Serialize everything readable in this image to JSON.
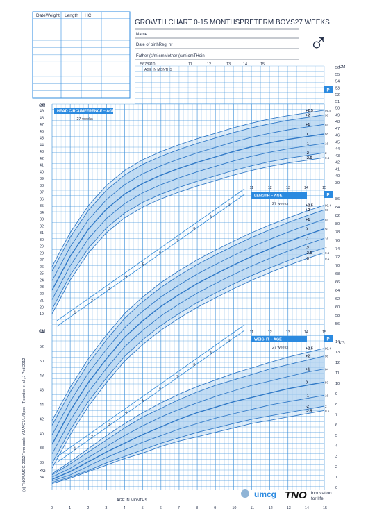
{
  "header": {
    "title": "GROWTH CHART 0-15 MONTHSPRETERM BOYS27 WEEKS",
    "form_fields": [
      "Name",
      "Date of birthReg. nr",
      "Father (s/m)cmMother (s/m)cmTHoin"
    ],
    "symbol": "♂",
    "copyright": "(c) TNO/UMCG 2012Form code: YJAA/27/Ll/Upss  –Tjeerdes et al., J Ped 2012"
  },
  "measurement_table": {
    "columns": [
      "DateWeight",
      "Length",
      "HC"
    ],
    "rows": 11
  },
  "top_axis": {
    "label": "AGE IN MONTHS",
    "ticks": [
      "5678910",
      "11",
      "12",
      "13",
      "14",
      "15"
    ]
  },
  "bottom_axis": {
    "label": "AGE IN MONTHS",
    "ticks": [
      "0",
      "1",
      "2",
      "3",
      "4",
      "5",
      "6",
      "7",
      "8",
      "9",
      "10",
      "11",
      "12",
      "13",
      "14",
      "15"
    ]
  },
  "units": {
    "cm": "CM",
    "kg": "KG",
    "p": "P"
  },
  "logos": {
    "umcg": "umcg",
    "tno": "TNO",
    "tno_tagline_1": "innovation",
    "tno_tagline_2": "for life"
  },
  "colors": {
    "band": "#a9cdef",
    "grid": "#3a8fd9",
    "line": "#2f78c6",
    "header": "#2b8ae0",
    "text": "#1f2a44"
  },
  "chart_data": [
    {
      "type": "line",
      "title": "HEAD CIRCUMFERENCE – AGE",
      "subtitle": "27 weeks",
      "x": [
        0,
        1,
        2,
        3,
        4,
        5,
        6,
        7,
        8,
        9,
        10,
        11,
        12,
        13,
        14,
        15
      ],
      "xlabel": "AGE IN MONTHS",
      "ylabel": "CM",
      "xlim": [
        0,
        15
      ],
      "ylim": [
        19,
        50
      ],
      "series": [
        {
          "name": "+2.5",
          "values": [
            26.0,
            31.0,
            35.0,
            38.0,
            40.2,
            41.8,
            43.0,
            44.0,
            44.9,
            45.7,
            46.5,
            47.2,
            47.8,
            48.3,
            48.7,
            49.1
          ]
        },
        {
          "name": "+2",
          "values": [
            25.3,
            30.3,
            34.3,
            37.3,
            39.5,
            41.1,
            42.3,
            43.3,
            44.2,
            45.0,
            45.8,
            46.5,
            47.1,
            47.6,
            48.0,
            48.4
          ]
        },
        {
          "name": "+1",
          "values": [
            23.9,
            28.9,
            32.9,
            35.9,
            38.1,
            39.7,
            40.9,
            41.9,
            42.8,
            43.6,
            44.4,
            45.1,
            45.7,
            46.2,
            46.6,
            47.0
          ]
        },
        {
          "name": "0",
          "values": [
            22.5,
            27.5,
            31.5,
            34.5,
            36.7,
            38.3,
            39.5,
            40.5,
            41.4,
            42.2,
            43.0,
            43.7,
            44.3,
            44.8,
            45.2,
            45.6
          ]
        },
        {
          "name": "-1",
          "values": [
            21.1,
            26.1,
            30.1,
            33.1,
            35.3,
            36.9,
            38.1,
            39.1,
            40.0,
            40.8,
            41.6,
            42.3,
            42.9,
            43.4,
            43.8,
            44.2
          ]
        },
        {
          "name": "-2",
          "values": [
            19.7,
            24.7,
            28.7,
            31.7,
            33.9,
            35.5,
            36.7,
            37.7,
            38.6,
            39.4,
            40.2,
            40.9,
            41.5,
            42.0,
            42.4,
            42.8
          ]
        },
        {
          "name": "-2.5",
          "values": [
            19.0,
            24.0,
            28.0,
            31.0,
            33.2,
            34.8,
            36.0,
            37.0,
            37.9,
            38.7,
            39.5,
            40.2,
            40.8,
            41.3,
            41.7,
            42.1
          ]
        }
      ],
      "percentiles": [
        "99.4",
        "98",
        "84",
        "50",
        "16",
        "2",
        "0.6"
      ]
    },
    {
      "type": "line",
      "title": "LENGTH – AGE",
      "subtitle": "27 weeks",
      "x": [
        0,
        1,
        2,
        3,
        4,
        5,
        6,
        7,
        8,
        9,
        10,
        11,
        12,
        13,
        14,
        15
      ],
      "xlabel": "AGE IN MONTHS",
      "ylabel": "CM",
      "xlim": [
        0,
        15
      ],
      "ylim": [
        34,
        88
      ],
      "series": [
        {
          "name": "+2.5",
          "values": [
            39,
            46,
            52,
            57,
            61.5,
            65,
            68,
            70.5,
            72.8,
            74.8,
            76.7,
            78.5,
            80.1,
            81.6,
            83.0,
            84.3
          ]
        },
        {
          "name": "+2",
          "values": [
            38,
            45,
            51,
            56,
            60.5,
            64,
            67,
            69.5,
            71.8,
            73.8,
            75.7,
            77.5,
            79.1,
            80.6,
            82.0,
            83.3
          ]
        },
        {
          "name": "+1",
          "values": [
            36,
            43,
            49,
            54,
            58.5,
            62,
            65,
            67.5,
            69.8,
            71.8,
            73.7,
            75.5,
            77.1,
            78.6,
            80.0,
            81.3
          ]
        },
        {
          "name": "0",
          "values": [
            34,
            41,
            47,
            52,
            56.5,
            60,
            63,
            65.5,
            67.8,
            69.8,
            71.7,
            73.5,
            75.1,
            76.6,
            78.0,
            79.3
          ]
        },
        {
          "name": "-1",
          "values": [
            32,
            39,
            45,
            50,
            54.5,
            58,
            61,
            63.5,
            65.8,
            67.8,
            69.7,
            71.5,
            73.1,
            74.6,
            76.0,
            77.3
          ]
        },
        {
          "name": "-2",
          "values": [
            30,
            37,
            43,
            48,
            52.5,
            56,
            59,
            61.5,
            63.8,
            65.8,
            67.7,
            69.5,
            71.1,
            72.6,
            74.0,
            75.3
          ]
        },
        {
          "name": "-2.5",
          "values": [
            29,
            36,
            42,
            47,
            51.5,
            55,
            58,
            60.5,
            62.8,
            64.8,
            66.7,
            68.5,
            70.1,
            71.6,
            73.0,
            74.3
          ]
        }
      ],
      "extra_labels": [
        "-3"
      ],
      "percentiles": [
        "99.4",
        "98",
        "84",
        "50",
        "16",
        "2",
        "0.6",
        "0.1"
      ]
    },
    {
      "type": "line",
      "title": "WEIGHT – AGE",
      "subtitle": "27 weeks",
      "x": [
        0,
        1,
        2,
        3,
        4,
        5,
        6,
        7,
        8,
        9,
        10,
        11,
        12,
        13,
        14,
        15
      ],
      "xlabel": "AGE IN MONTHS",
      "ylabel": "KG",
      "xlim": [
        0,
        15
      ],
      "ylim": [
        0,
        14
      ],
      "series": [
        {
          "name": "+2.5",
          "values": [
            1.5,
            2.6,
            3.8,
            5.0,
            6.1,
            7.1,
            8.0,
            8.8,
            9.5,
            10.1,
            10.7,
            11.2,
            11.7,
            12.2,
            12.6,
            13.0
          ]
        },
        {
          "name": "+2",
          "values": [
            1.4,
            2.4,
            3.5,
            4.6,
            5.7,
            6.7,
            7.5,
            8.3,
            9.0,
            9.6,
            10.1,
            10.6,
            11.1,
            11.5,
            11.9,
            12.3
          ]
        },
        {
          "name": "+1",
          "values": [
            1.2,
            2.0,
            3.0,
            4.0,
            5.0,
            5.9,
            6.7,
            7.4,
            8.0,
            8.6,
            9.1,
            9.6,
            10.0,
            10.4,
            10.8,
            11.1
          ]
        },
        {
          "name": "0",
          "values": [
            1.0,
            1.7,
            2.6,
            3.5,
            4.3,
            5.1,
            5.8,
            6.5,
            7.1,
            7.6,
            8.1,
            8.5,
            8.9,
            9.3,
            9.6,
            9.9
          ]
        },
        {
          "name": "-1",
          "values": [
            0.85,
            1.4,
            2.2,
            3.0,
            3.7,
            4.4,
            5.0,
            5.6,
            6.1,
            6.6,
            7.0,
            7.4,
            7.8,
            8.1,
            8.4,
            8.7
          ]
        },
        {
          "name": "-2",
          "values": [
            0.7,
            1.2,
            1.8,
            2.5,
            3.1,
            3.7,
            4.3,
            4.8,
            5.3,
            5.7,
            6.1,
            6.5,
            6.8,
            7.1,
            7.4,
            7.7
          ]
        },
        {
          "name": "-2.5",
          "values": [
            0.6,
            1.1,
            1.7,
            2.3,
            2.9,
            3.4,
            4.0,
            4.5,
            4.9,
            5.3,
            5.7,
            6.1,
            6.4,
            6.7,
            7.0,
            7.3
          ]
        }
      ],
      "percentiles": [
        "99.4",
        "98",
        "84",
        "50",
        "16",
        "2",
        "0.6"
      ]
    }
  ]
}
